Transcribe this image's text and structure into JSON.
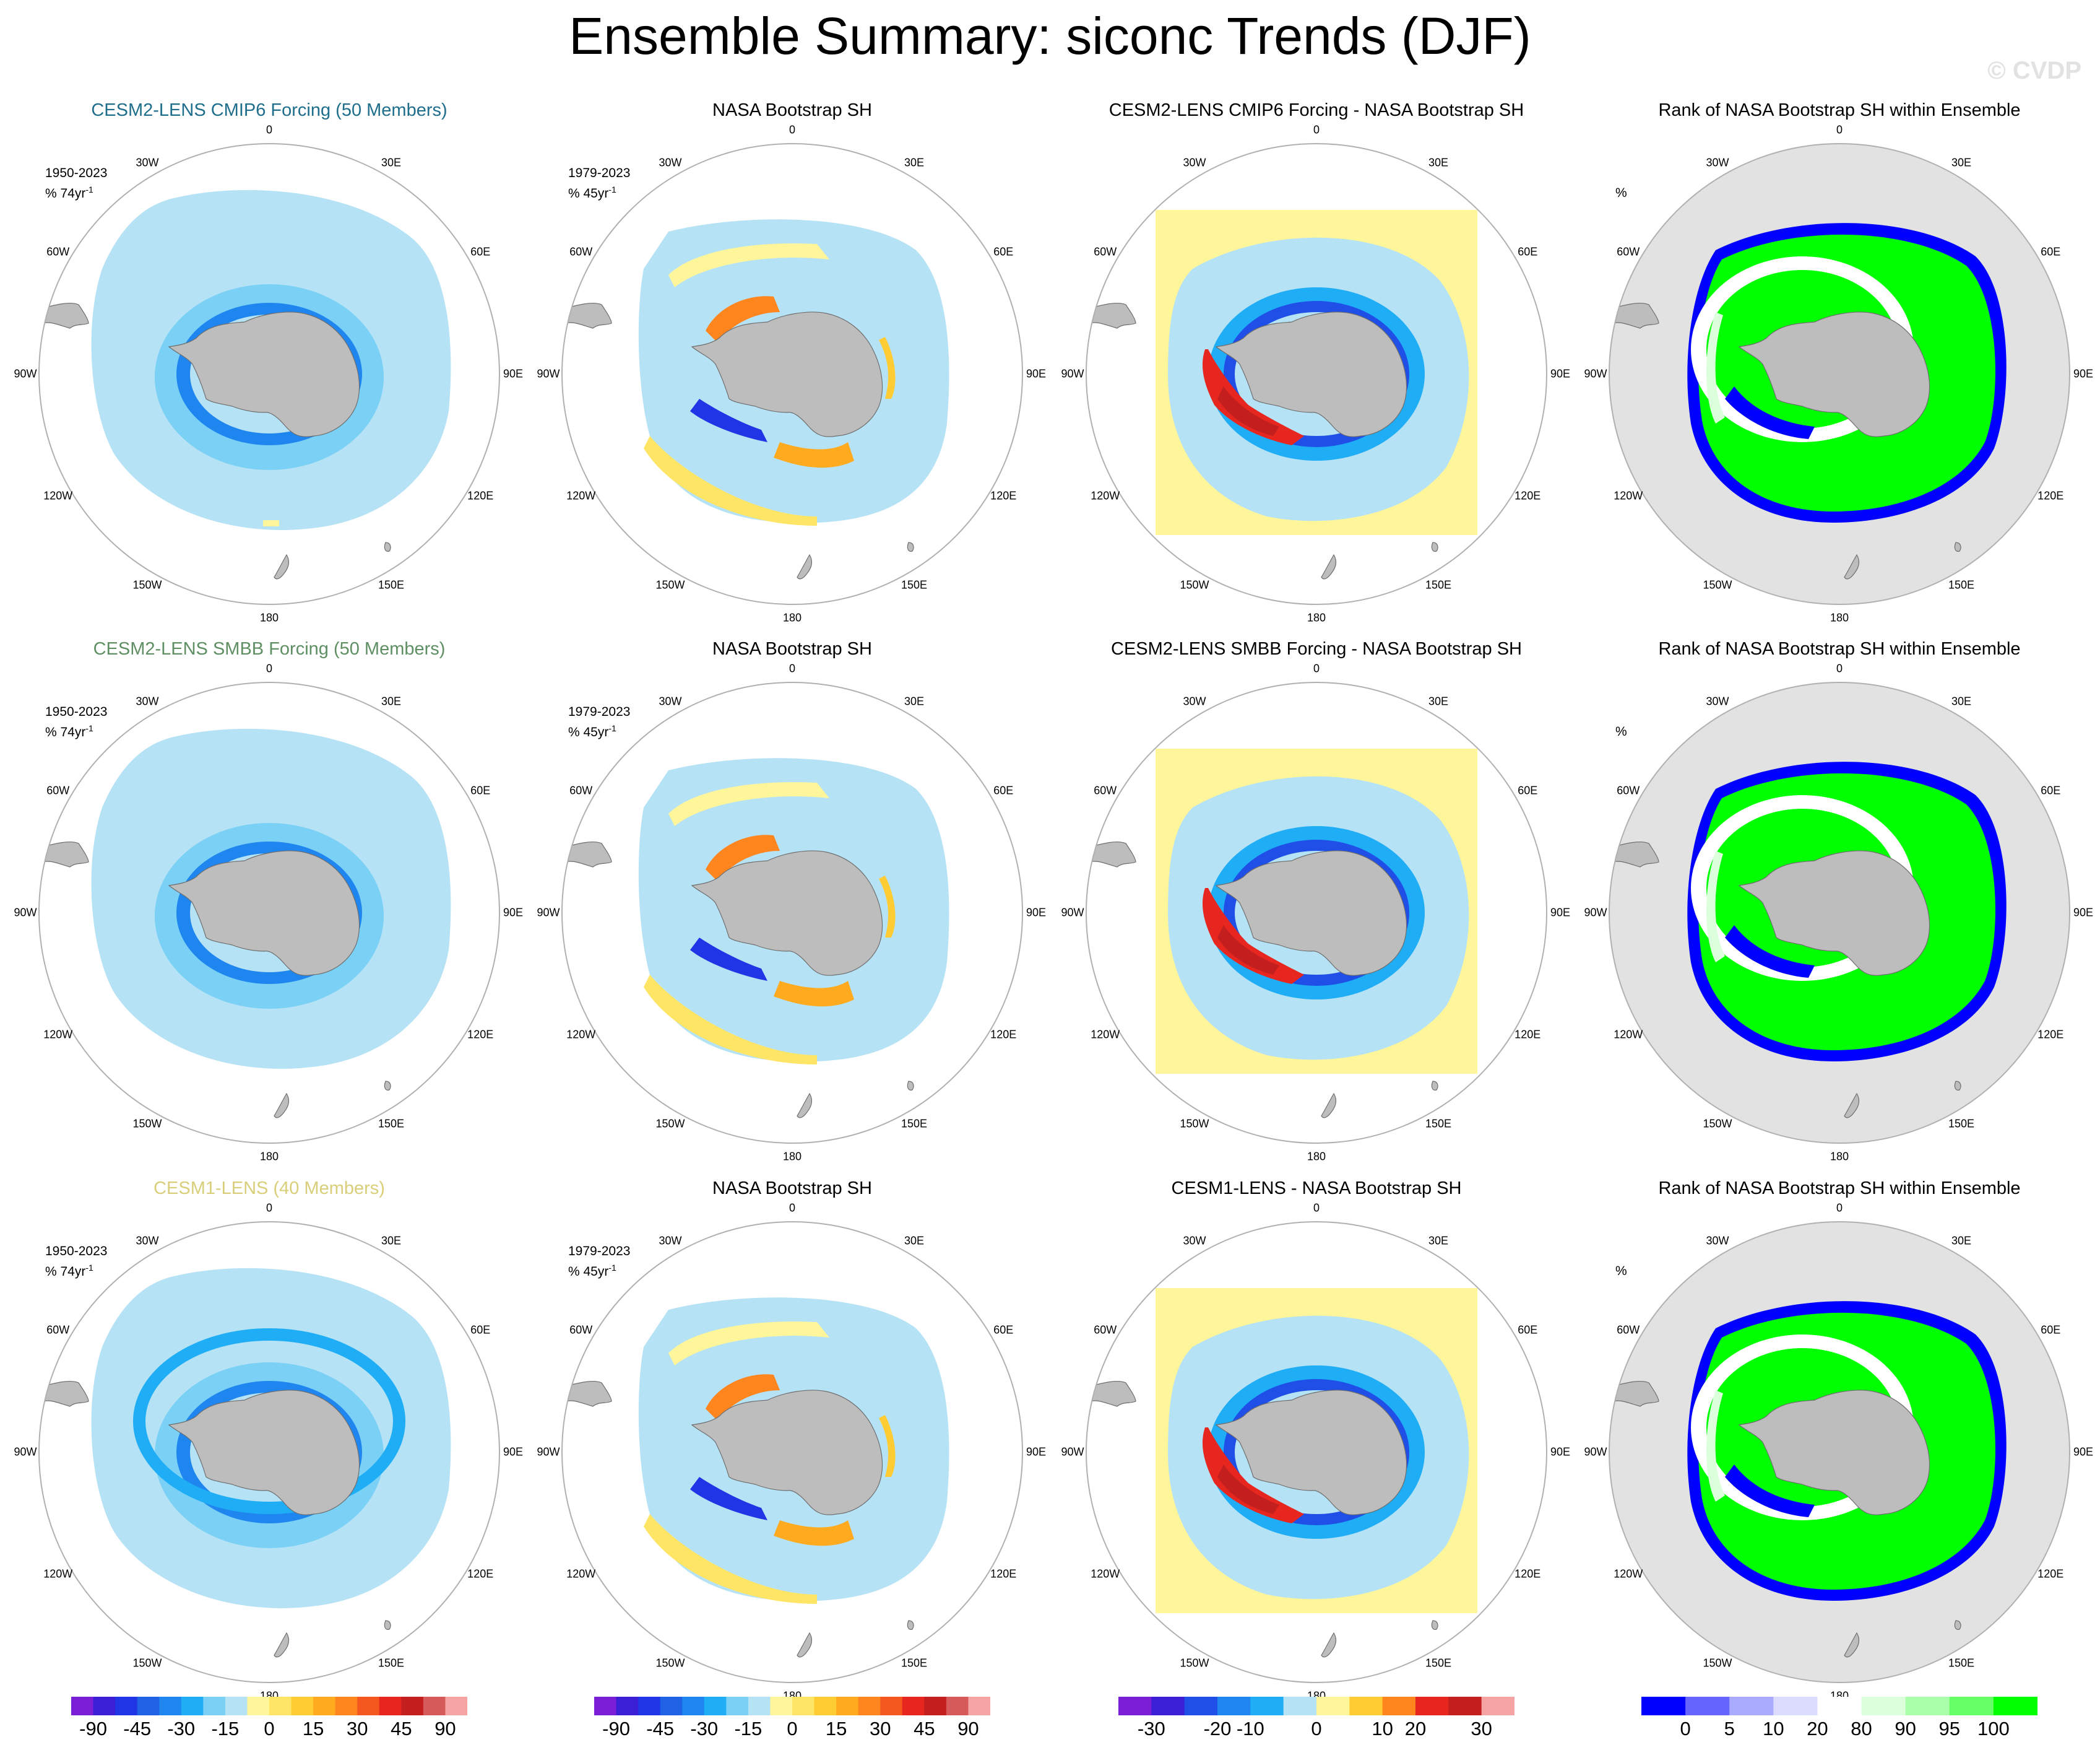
{
  "title": "Ensemble Summary: siconc Trends (DJF)",
  "watermark": "© CVDP",
  "lon_labels": [
    "0",
    "30E",
    "60E",
    "90E",
    "120E",
    "150E",
    "180",
    "150W",
    "120W",
    "90W",
    "60W",
    "30W"
  ],
  "colors": {
    "land": "#bdbdbd",
    "rank_background": "#e2e2e2",
    "circle_outline": "#b0b0b0",
    "title_row1": "#1f6e8c",
    "title_row2": "#5f8f63",
    "title_row3": "#d9cf7a",
    "title_default": "#000000"
  },
  "colorbars": [
    {
      "labels": [
        "-90",
        "-45",
        "-30",
        "-15",
        "0",
        "15",
        "30",
        "45",
        "90"
      ],
      "colors": [
        "#7a1fd6",
        "#3b1fd6",
        "#1f35e6",
        "#1f62e6",
        "#1f86ef",
        "#1fadf5",
        "#7ad0f5",
        "#b6e2f5",
        "#fff59a",
        "#ffe566",
        "#ffcc33",
        "#ffaa1f",
        "#ff851f",
        "#f5581f",
        "#e6261f",
        "#c41f1f",
        "#d65a5a",
        "#f5a3a3"
      ]
    },
    {
      "labels": [
        "-90",
        "-45",
        "-30",
        "-15",
        "0",
        "15",
        "30",
        "45",
        "90"
      ],
      "colors": [
        "#7a1fd6",
        "#3b1fd6",
        "#1f35e6",
        "#1f62e6",
        "#1f86ef",
        "#1fadf5",
        "#7ad0f5",
        "#b6e2f5",
        "#fff59a",
        "#ffe566",
        "#ffcc33",
        "#ffaa1f",
        "#ff851f",
        "#f5581f",
        "#e6261f",
        "#c41f1f",
        "#d65a5a",
        "#f5a3a3"
      ]
    },
    {
      "labels": [
        "-30",
        "-20",
        "-10",
        "0",
        "10",
        "20",
        "30"
      ],
      "colors": [
        "#7a1fd6",
        "#3b1fd6",
        "#1f4fe6",
        "#1f86ef",
        "#1fadf5",
        "#b6e2f5",
        "#fff59a",
        "#ffcc33",
        "#ff851f",
        "#e6261f",
        "#c41f1f",
        "#f5a3a3"
      ]
    },
    {
      "labels": [
        "0",
        "5",
        "10",
        "20",
        "80",
        "90",
        "95",
        "100"
      ],
      "colors": [
        "#0000ff",
        "#6666ff",
        "#aaaaff",
        "#dcdcff",
        "#ffffff",
        "#dcffdc",
        "#aaffaa",
        "#66ff66",
        "#00ff00"
      ]
    }
  ],
  "rows": [
    {
      "ensemble": {
        "title": "CESM2-LENS CMIP6 Forcing (50 Members)",
        "period": "1950-2023",
        "trend_unit": "% 74yr",
        "trend_exp": "-1"
      },
      "obs": {
        "title": "NASA Bootstrap SH",
        "period": "1979-2023",
        "trend_unit": "% 45yr",
        "trend_exp": "-1"
      },
      "diff": {
        "title": "CESM2-LENS CMIP6 Forcing - NASA Bootstrap SH"
      },
      "rank": {
        "title": "Rank of NASA Bootstrap SH within Ensemble",
        "unit": "%"
      }
    },
    {
      "ensemble": {
        "title": "CESM2-LENS SMBB Forcing (50 Members)",
        "period": "1950-2023",
        "trend_unit": "% 74yr",
        "trend_exp": "-1"
      },
      "obs": {
        "title": "NASA Bootstrap SH",
        "period": "1979-2023",
        "trend_unit": "% 45yr",
        "trend_exp": "-1"
      },
      "diff": {
        "title": "CESM2-LENS SMBB Forcing - NASA Bootstrap SH"
      },
      "rank": {
        "title": "Rank of NASA Bootstrap SH within Ensemble",
        "unit": "%"
      }
    },
    {
      "ensemble": {
        "title": "CESM1-LENS (40 Members)",
        "period": "1950-2023",
        "trend_unit": "% 74yr",
        "trend_exp": "-1"
      },
      "obs": {
        "title": "NASA Bootstrap SH",
        "period": "1979-2023",
        "trend_unit": "% 45yr",
        "trend_exp": "-1"
      },
      "diff": {
        "title": "CESM1-LENS - NASA Bootstrap SH"
      },
      "rank": {
        "title": "Rank of NASA Bootstrap SH within Ensemble",
        "unit": "%"
      }
    }
  ],
  "chart_data": {
    "type": "heatmap",
    "projection": "south polar stereographic",
    "variable": "siconc",
    "season": "DJF",
    "panels": [
      {
        "row": 1,
        "col": 1,
        "title": "CESM2-LENS CMIP6 Forcing (50 Members)",
        "label": "1950-2023",
        "units": "% 74yr-1"
      },
      {
        "row": 1,
        "col": 2,
        "title": "NASA Bootstrap SH",
        "label": "1979-2023",
        "units": "% 45yr-1"
      },
      {
        "row": 1,
        "col": 3,
        "title": "CESM2-LENS CMIP6 Forcing - NASA Bootstrap SH"
      },
      {
        "row": 1,
        "col": 4,
        "title": "Rank of NASA Bootstrap SH within Ensemble",
        "units": "%"
      },
      {
        "row": 2,
        "col": 1,
        "title": "CESM2-LENS SMBB Forcing (50 Members)",
        "label": "1950-2023",
        "units": "% 74yr-1"
      },
      {
        "row": 2,
        "col": 2,
        "title": "NASA Bootstrap SH",
        "label": "1979-2023",
        "units": "% 45yr-1"
      },
      {
        "row": 2,
        "col": 3,
        "title": "CESM2-LENS SMBB Forcing - NASA Bootstrap SH"
      },
      {
        "row": 2,
        "col": 4,
        "title": "Rank of NASA Bootstrap SH within Ensemble",
        "units": "%"
      },
      {
        "row": 3,
        "col": 1,
        "title": "CESM1-LENS (40 Members)",
        "label": "1950-2023",
        "units": "% 74yr-1"
      },
      {
        "row": 3,
        "col": 2,
        "title": "NASA Bootstrap SH",
        "label": "1979-2023",
        "units": "% 45yr-1"
      },
      {
        "row": 3,
        "col": 3,
        "title": "CESM1-LENS - NASA Bootstrap SH"
      },
      {
        "row": 3,
        "col": 4,
        "title": "Rank of NASA Bootstrap SH within Ensemble",
        "units": "%"
      }
    ],
    "colorbar_levels": {
      "trend": [
        -90,
        -45,
        -30,
        -15,
        0,
        15,
        30,
        45,
        90
      ],
      "difference": [
        -30,
        -20,
        -10,
        0,
        10,
        20,
        30
      ],
      "rank": [
        0,
        5,
        10,
        20,
        80,
        90,
        95,
        100
      ]
    }
  }
}
